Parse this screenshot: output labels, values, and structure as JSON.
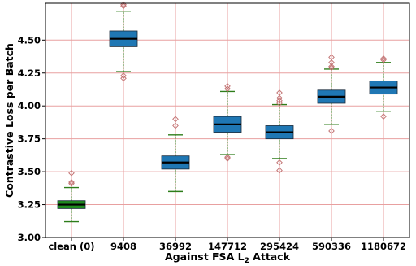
{
  "chart_data": {
    "type": "box",
    "xlabel": "Against FSA L",
    "xlabel_subscript": "2",
    "xlabel_suffix": " Attack",
    "ylabel": "Contrastive Loss per Batch",
    "ylim": [
      3.0,
      4.78
    ],
    "yticks": [
      "3.00",
      "3.25",
      "3.50",
      "3.75",
      "4.00",
      "4.25",
      "4.50"
    ],
    "ytick_values": [
      3.0,
      3.25,
      3.5,
      3.75,
      4.0,
      4.25,
      4.5
    ],
    "grid": true,
    "categories": [
      "clean (0)",
      "9408",
      "36992",
      "147712",
      "295424",
      "590336",
      "1180672"
    ],
    "boxes": [
      {
        "q1": 3.22,
        "median": 3.25,
        "q3": 3.28,
        "whislo": 3.12,
        "whishi": 3.38,
        "fliers": [
          3.41,
          3.42,
          3.49
        ],
        "color": "#1f8a1f"
      },
      {
        "q1": 4.45,
        "median": 4.51,
        "q3": 4.57,
        "whislo": 4.26,
        "whishi": 4.72,
        "fliers": [
          4.21,
          4.23,
          4.76,
          4.77
        ],
        "color": "#1f77b4"
      },
      {
        "q1": 3.52,
        "median": 3.57,
        "q3": 3.62,
        "whislo": 3.35,
        "whishi": 3.78,
        "fliers": [
          3.85,
          3.9
        ],
        "color": "#1f77b4"
      },
      {
        "q1": 3.8,
        "median": 3.86,
        "q3": 3.92,
        "whislo": 3.63,
        "whishi": 4.11,
        "fliers": [
          3.6,
          3.61,
          4.13,
          4.15
        ],
        "color": "#1f77b4"
      },
      {
        "q1": 3.75,
        "median": 3.8,
        "q3": 3.85,
        "whislo": 3.6,
        "whishi": 4.01,
        "fliers": [
          3.51,
          3.57,
          4.02,
          4.04,
          4.06,
          4.1
        ],
        "color": "#1f77b4"
      },
      {
        "q1": 4.02,
        "median": 4.07,
        "q3": 4.12,
        "whislo": 3.86,
        "whishi": 4.28,
        "fliers": [
          3.81,
          4.29,
          4.3,
          4.33,
          4.37
        ],
        "color": "#1f77b4"
      },
      {
        "q1": 4.09,
        "median": 4.14,
        "q3": 4.19,
        "whislo": 3.96,
        "whishi": 4.33,
        "fliers": [
          3.92,
          4.35,
          4.36
        ],
        "color": "#1f77b4"
      }
    ],
    "colors": {
      "grid": "#e8a0a0",
      "whisker": "#2e7d1a",
      "median": "#000000",
      "flier": "#c07070"
    }
  }
}
